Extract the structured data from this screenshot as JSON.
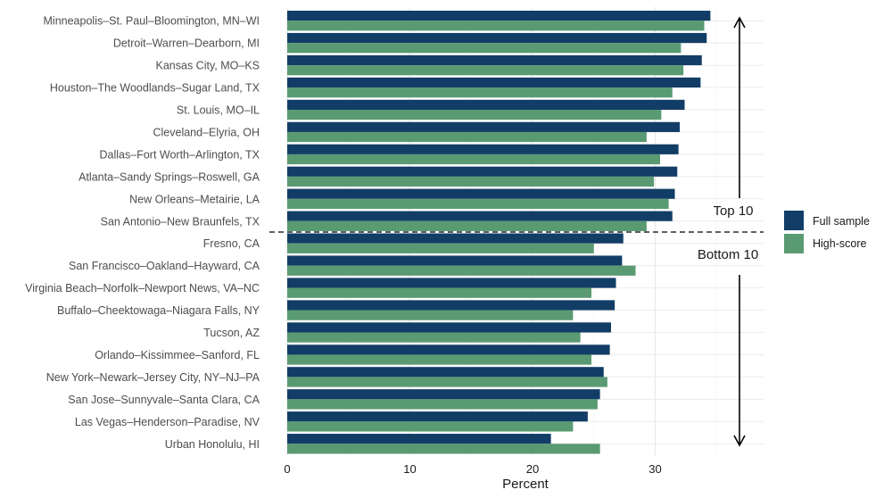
{
  "chart_data": {
    "type": "bar",
    "orientation": "horizontal",
    "categories": [
      "Minneapolis–St. Paul–Bloomington, MN–WI",
      "Detroit–Warren–Dearborn, MI",
      "Kansas City, MO–KS",
      "Houston–The Woodlands–Sugar Land, TX",
      "St. Louis, MO–IL",
      "Cleveland–Elyria, OH",
      "Dallas–Fort Worth–Arlington, TX",
      "Atlanta–Sandy Springs–Roswell, GA",
      "New Orleans–Metairie, LA",
      "San Antonio–New Braunfels, TX",
      "Fresno, CA",
      "San Francisco–Oakland–Hayward, CA",
      "Virginia Beach–Norfolk–Newport News, VA–NC",
      "Buffalo–Cheektowaga–Niagara Falls, NY",
      "Tucson, AZ",
      "Orlando–Kissimmee–Sanford, FL",
      "New York–Newark–Jersey City, NY–NJ–PA",
      "San Jose–Sunnyvale–Santa Clara, CA",
      "Las Vegas–Henderson–Paradise, NV",
      "Urban Honolulu, HI"
    ],
    "series": [
      {
        "name": "Full sample",
        "color": "#123d66",
        "values": [
          34.5,
          34.2,
          33.8,
          33.7,
          32.4,
          32.0,
          31.9,
          31.8,
          31.6,
          31.4,
          27.4,
          27.3,
          26.8,
          26.7,
          26.4,
          26.3,
          25.8,
          25.5,
          24.5,
          21.5
        ]
      },
      {
        "name": "High-score",
        "color": "#5a9a73",
        "values": [
          34.0,
          32.1,
          32.3,
          31.4,
          30.5,
          29.3,
          30.4,
          29.9,
          31.1,
          29.3,
          25.0,
          28.4,
          24.8,
          23.3,
          23.9,
          24.8,
          26.1,
          25.3,
          23.3,
          25.5
        ]
      }
    ],
    "xlabel": "Percent",
    "ylabel": "",
    "xlim": [
      0,
      38.5
    ],
    "xticks": [
      "0",
      "10",
      "20",
      "30"
    ],
    "grid": true,
    "legend_position": "right",
    "annotations": {
      "top_label": "Top 10",
      "bottom_label": "Bottom 10"
    }
  }
}
